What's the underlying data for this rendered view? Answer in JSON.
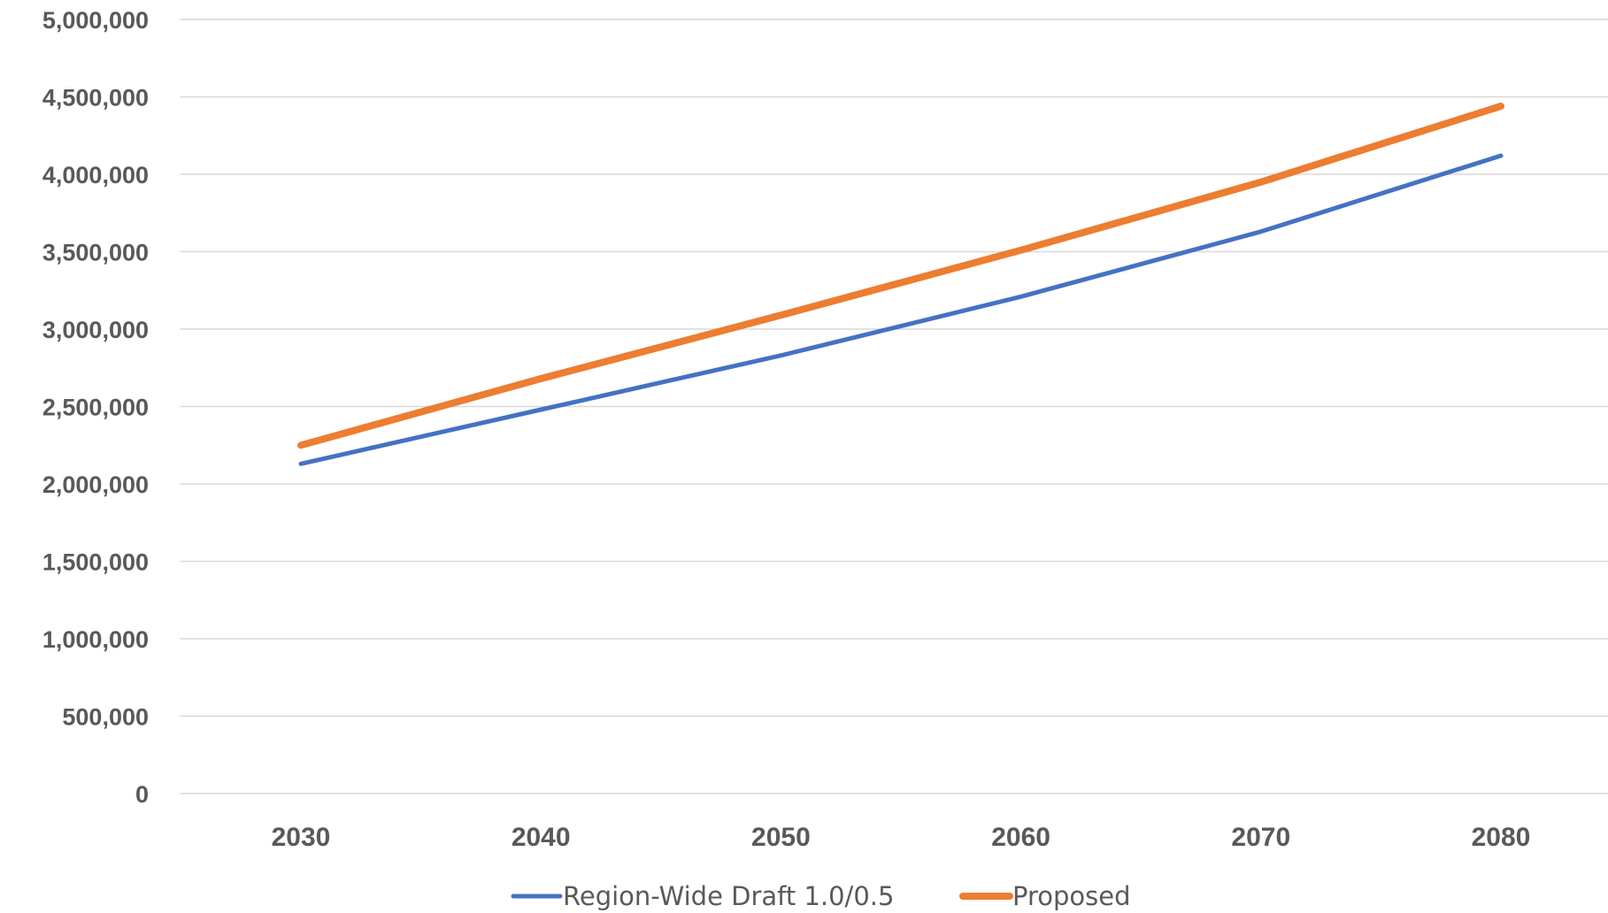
{
  "chart_data": {
    "type": "line",
    "title": "",
    "xlabel": "",
    "ylabel": "",
    "categories": [
      "2030",
      "2040",
      "2050",
      "2060",
      "2070",
      "2080"
    ],
    "ylim": [
      0,
      5000000
    ],
    "y_ticks": [
      "0",
      "500,000",
      "1,000,000",
      "1,500,000",
      "2,000,000",
      "2,500,000",
      "3,000,000",
      "3,500,000",
      "4,000,000",
      "4,500,000",
      "5,000,000"
    ],
    "grid": true,
    "legend_position": "bottom",
    "series": [
      {
        "name": "Region-Wide Draft 1.0/0.5",
        "color": "#4472C4",
        "values": [
          2130000,
          2480000,
          2830000,
          3210000,
          3630000,
          4120000
        ]
      },
      {
        "name": "Proposed",
        "color": "#ED7D31",
        "values": [
          2250000,
          2680000,
          3090000,
          3510000,
          3950000,
          4440000
        ]
      }
    ]
  }
}
